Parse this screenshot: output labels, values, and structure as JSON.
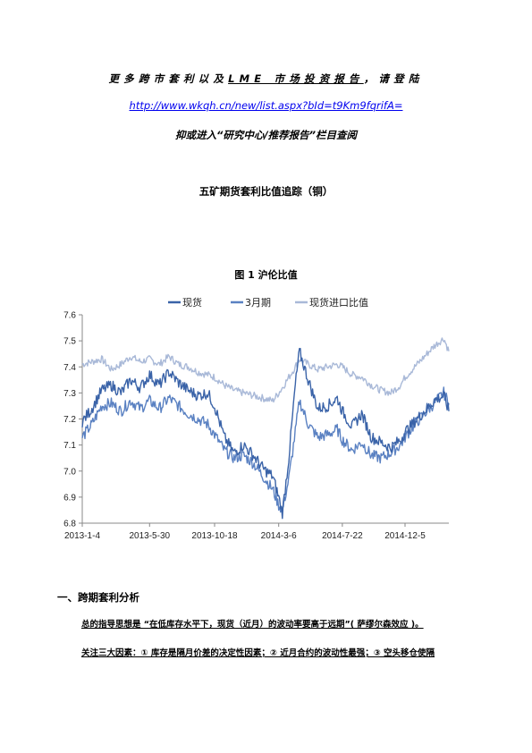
{
  "header": {
    "promo_part1": "更多跨市套利以及",
    "promo_part2": "LME 市场投资报告",
    "promo_part3": "，请登陆",
    "url": "http://www.wkqh.cn/new/list.aspx?bId=t9Km9fqrifA=",
    "sub_line": "抑或进入“研究中心/推荐报告”栏目查阅"
  },
  "document": {
    "title": "五矿期货套利比值追踪（铜）",
    "figure_caption": "图 1   沪伦比值",
    "section_heading": "一、跨期套利分析",
    "paragraph1": "总的指导思想是 “在低库存水平下，现货（近月）的波动率要高于远期”( 萨缪尔森效应 )。",
    "paragraph2": "关注三大因素：①  库存是隔月价差的决定性因素；②  近月合约的波动性最强；③  空头移仓使隔"
  },
  "chart_data": {
    "type": "line",
    "title": "",
    "xlabel": "",
    "ylabel": "",
    "ylim": [
      6.8,
      7.6
    ],
    "yticks": [
      "6.8",
      "6.9",
      "7.0",
      "7.1",
      "7.2",
      "7.3",
      "7.4",
      "7.5",
      "7.6"
    ],
    "xticks": [
      "2013-1-4",
      "2013-5-30",
      "2013-10-18",
      "2014-3-6",
      "2014-7-22",
      "2014-12-5"
    ],
    "xrange": [
      "2013-01-04",
      "2015-03-10"
    ],
    "grid": false,
    "legend_position": "top",
    "series": [
      {
        "name": "现货",
        "color": "#3a63a8",
        "points": [
          [
            "2013-01-04",
            7.19
          ],
          [
            "2013-01-25",
            7.24
          ],
          [
            "2013-02-15",
            7.31
          ],
          [
            "2013-03-08",
            7.33
          ],
          [
            "2013-03-29",
            7.3
          ],
          [
            "2013-04-19",
            7.35
          ],
          [
            "2013-05-10",
            7.32
          ],
          [
            "2013-05-30",
            7.37
          ],
          [
            "2013-06-20",
            7.33
          ],
          [
            "2013-07-11",
            7.38
          ],
          [
            "2013-08-01",
            7.34
          ],
          [
            "2013-08-22",
            7.31
          ],
          [
            "2013-09-12",
            7.29
          ],
          [
            "2013-10-03",
            7.3
          ],
          [
            "2013-10-18",
            7.25
          ],
          [
            "2013-11-08",
            7.13
          ],
          [
            "2013-11-29",
            7.07
          ],
          [
            "2013-12-20",
            7.1
          ],
          [
            "2014-01-10",
            7.06
          ],
          [
            "2014-01-31",
            7.01
          ],
          [
            "2014-02-21",
            6.98
          ],
          [
            "2014-03-06",
            6.9
          ],
          [
            "2014-03-14",
            6.84
          ],
          [
            "2014-03-28",
            7.05
          ],
          [
            "2014-04-11",
            7.33
          ],
          [
            "2014-04-20",
            7.46
          ],
          [
            "2014-05-09",
            7.35
          ],
          [
            "2014-05-30",
            7.24
          ],
          [
            "2014-06-20",
            7.25
          ],
          [
            "2014-07-11",
            7.28
          ],
          [
            "2014-07-22",
            7.23
          ],
          [
            "2014-08-12",
            7.17
          ],
          [
            "2014-09-02",
            7.22
          ],
          [
            "2014-09-23",
            7.13
          ],
          [
            "2014-10-14",
            7.11
          ],
          [
            "2014-11-04",
            7.09
          ],
          [
            "2014-11-25",
            7.12
          ],
          [
            "2014-12-05",
            7.15
          ],
          [
            "2014-12-26",
            7.19
          ],
          [
            "2015-01-16",
            7.23
          ],
          [
            "2015-02-06",
            7.27
          ],
          [
            "2015-02-27",
            7.29
          ],
          [
            "2015-03-10",
            7.23
          ]
        ]
      },
      {
        "name": "3月期",
        "color": "#5a81c2",
        "points": [
          [
            "2013-01-04",
            7.13
          ],
          [
            "2013-01-25",
            7.18
          ],
          [
            "2013-02-15",
            7.25
          ],
          [
            "2013-03-08",
            7.26
          ],
          [
            "2013-03-29",
            7.23
          ],
          [
            "2013-04-19",
            7.27
          ],
          [
            "2013-05-10",
            7.24
          ],
          [
            "2013-05-30",
            7.27
          ],
          [
            "2013-06-20",
            7.24
          ],
          [
            "2013-07-11",
            7.28
          ],
          [
            "2013-08-01",
            7.25
          ],
          [
            "2013-08-22",
            7.22
          ],
          [
            "2013-09-12",
            7.2
          ],
          [
            "2013-10-03",
            7.18
          ],
          [
            "2013-10-18",
            7.14
          ],
          [
            "2013-11-08",
            7.08
          ],
          [
            "2013-11-29",
            7.05
          ],
          [
            "2013-12-20",
            7.06
          ],
          [
            "2014-01-10",
            7.03
          ],
          [
            "2014-01-31",
            6.98
          ],
          [
            "2014-02-21",
            6.93
          ],
          [
            "2014-03-06",
            6.87
          ],
          [
            "2014-03-14",
            6.85
          ],
          [
            "2014-03-28",
            6.97
          ],
          [
            "2014-04-11",
            7.15
          ],
          [
            "2014-04-20",
            7.27
          ],
          [
            "2014-05-09",
            7.18
          ],
          [
            "2014-05-30",
            7.13
          ],
          [
            "2014-06-20",
            7.14
          ],
          [
            "2014-07-11",
            7.16
          ],
          [
            "2014-07-22",
            7.12
          ],
          [
            "2014-08-12",
            7.08
          ],
          [
            "2014-09-02",
            7.11
          ],
          [
            "2014-09-23",
            7.06
          ],
          [
            "2014-10-14",
            7.05
          ],
          [
            "2014-11-04",
            7.07
          ],
          [
            "2014-11-25",
            7.1
          ],
          [
            "2014-12-05",
            7.13
          ],
          [
            "2014-12-26",
            7.18
          ],
          [
            "2015-01-16",
            7.22
          ],
          [
            "2015-02-06",
            7.26
          ],
          [
            "2015-02-27",
            7.3
          ],
          [
            "2015-03-10",
            7.26
          ]
        ]
      },
      {
        "name": "现货进口比值",
        "color": "#a9b9d8",
        "points": [
          [
            "2013-01-04",
            7.41
          ],
          [
            "2013-01-25",
            7.42
          ],
          [
            "2013-02-15",
            7.43
          ],
          [
            "2013-03-08",
            7.39
          ],
          [
            "2013-03-29",
            7.41
          ],
          [
            "2013-04-19",
            7.44
          ],
          [
            "2013-05-10",
            7.42
          ],
          [
            "2013-05-30",
            7.43
          ],
          [
            "2013-06-20",
            7.41
          ],
          [
            "2013-07-11",
            7.44
          ],
          [
            "2013-08-01",
            7.41
          ],
          [
            "2013-08-22",
            7.4
          ],
          [
            "2013-09-12",
            7.38
          ],
          [
            "2013-10-03",
            7.37
          ],
          [
            "2013-10-18",
            7.36
          ],
          [
            "2013-11-08",
            7.33
          ],
          [
            "2013-11-29",
            7.31
          ],
          [
            "2013-12-20",
            7.3
          ],
          [
            "2014-01-10",
            7.29
          ],
          [
            "2014-01-31",
            7.28
          ],
          [
            "2014-02-21",
            7.27
          ],
          [
            "2014-03-06",
            7.3
          ],
          [
            "2014-03-14",
            7.32
          ],
          [
            "2014-03-28",
            7.36
          ],
          [
            "2014-04-11",
            7.4
          ],
          [
            "2014-04-20",
            7.43
          ],
          [
            "2014-05-09",
            7.41
          ],
          [
            "2014-05-30",
            7.39
          ],
          [
            "2014-06-20",
            7.4
          ],
          [
            "2014-07-11",
            7.41
          ],
          [
            "2014-07-22",
            7.4
          ],
          [
            "2014-08-12",
            7.37
          ],
          [
            "2014-09-02",
            7.36
          ],
          [
            "2014-09-23",
            7.33
          ],
          [
            "2014-10-14",
            7.31
          ],
          [
            "2014-11-04",
            7.3
          ],
          [
            "2014-11-25",
            7.33
          ],
          [
            "2014-12-05",
            7.36
          ],
          [
            "2014-12-26",
            7.4
          ],
          [
            "2015-01-16",
            7.44
          ],
          [
            "2015-02-06",
            7.48
          ],
          [
            "2015-02-27",
            7.51
          ],
          [
            "2015-03-10",
            7.46
          ]
        ]
      }
    ]
  }
}
